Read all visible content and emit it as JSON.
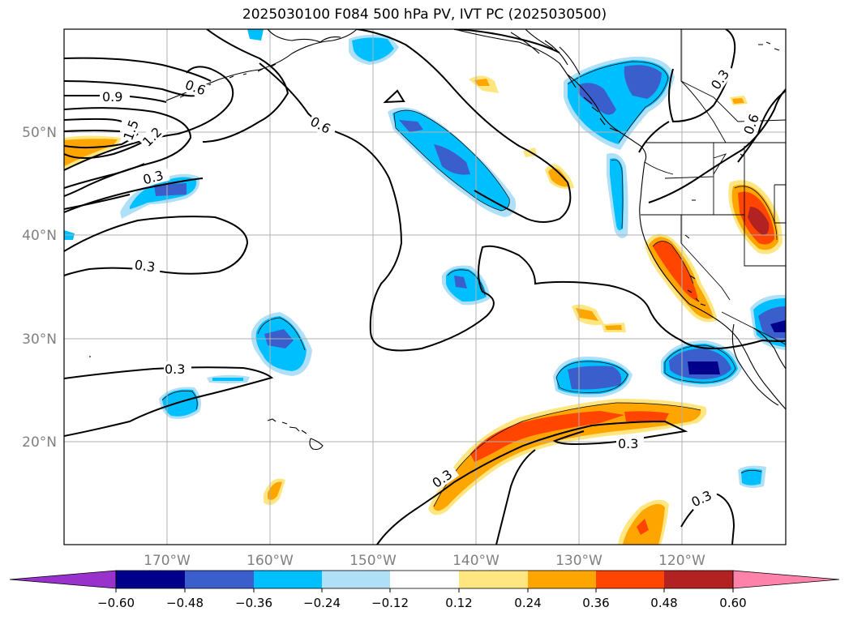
{
  "title": "2025030100 F084 500 hPa PV, IVT PC (2025030500)",
  "map": {
    "lon_range": [
      -180,
      -110
    ],
    "lat_range": [
      10,
      60
    ],
    "lon_ticks": [
      {
        "value": -170,
        "label": "170°W"
      },
      {
        "value": -160,
        "label": "160°W"
      },
      {
        "value": -150,
        "label": "150°W"
      },
      {
        "value": -140,
        "label": "140°W"
      },
      {
        "value": -130,
        "label": "130°W"
      },
      {
        "value": -120,
        "label": "120°W"
      }
    ],
    "lat_ticks": [
      {
        "value": 20,
        "label": "20°N"
      },
      {
        "value": 30,
        "label": "30°N"
      },
      {
        "value": 40,
        "label": "40°N"
      },
      {
        "value": 50,
        "label": "50°N"
      }
    ],
    "grid": true,
    "tick_label_color": "#808080"
  },
  "contour_labels": [
    "0.9",
    "0.6",
    "0.6",
    "1.5",
    "1.2",
    "0.3",
    "0.3",
    "0.3",
    "0.3",
    "0.3",
    "0.3",
    "0.3",
    "0.6"
  ],
  "colorbar": {
    "orientation": "horizontal",
    "extend": "both",
    "ticks": [
      "−0.60",
      "−0.48",
      "−0.36",
      "−0.24",
      "−0.12",
      "0.12",
      "0.24",
      "0.36",
      "0.48",
      "0.60"
    ],
    "colors": {
      "under": "#9932cc",
      "bins": [
        "#00008b",
        "#3a5fcd",
        "#00bfff",
        "#b0e0f8",
        "#ffffff",
        "#ffe680",
        "#ffa500",
        "#ff4500",
        "#b22222"
      ],
      "over": "#ff82ab"
    }
  }
}
